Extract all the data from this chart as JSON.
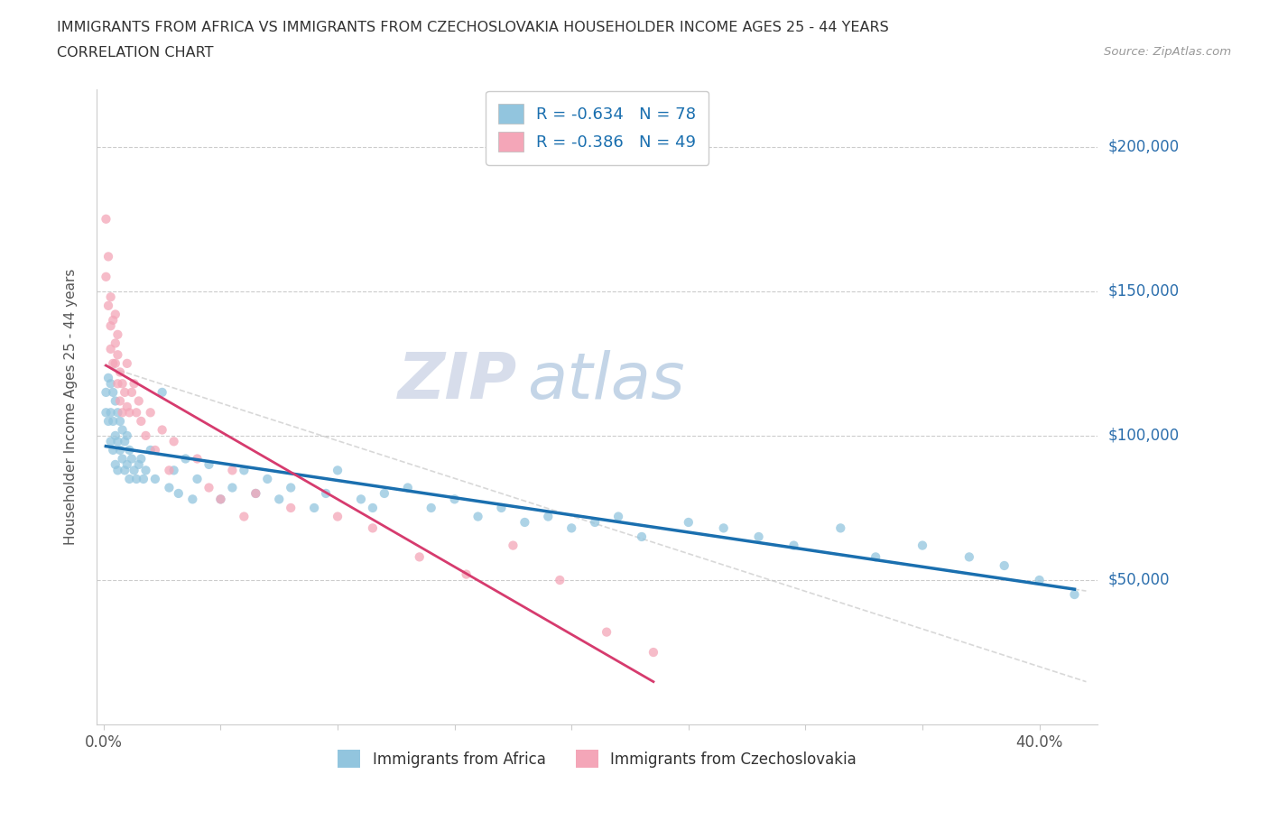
{
  "title_line1": "IMMIGRANTS FROM AFRICA VS IMMIGRANTS FROM CZECHOSLOVAKIA HOUSEHOLDER INCOME AGES 25 - 44 YEARS",
  "title_line2": "CORRELATION CHART",
  "source_text": "Source: ZipAtlas.com",
  "ylabel": "Householder Income Ages 25 - 44 years",
  "africa_color": "#92c5de",
  "czech_color": "#f4a6b8",
  "africa_line_color": "#1a6faf",
  "czech_line_color": "#d63b6e",
  "xlim": [
    -0.003,
    0.425
  ],
  "ylim": [
    0,
    220000
  ],
  "ytick_values": [
    50000,
    100000,
    150000,
    200000
  ],
  "xtick_values": [
    0.0,
    0.05,
    0.1,
    0.15,
    0.2,
    0.25,
    0.3,
    0.35,
    0.4
  ],
  "africa_x": [
    0.001,
    0.001,
    0.002,
    0.002,
    0.003,
    0.003,
    0.003,
    0.004,
    0.004,
    0.004,
    0.005,
    0.005,
    0.005,
    0.006,
    0.006,
    0.006,
    0.007,
    0.007,
    0.008,
    0.008,
    0.009,
    0.009,
    0.01,
    0.01,
    0.011,
    0.011,
    0.012,
    0.013,
    0.014,
    0.015,
    0.016,
    0.017,
    0.018,
    0.02,
    0.022,
    0.025,
    0.028,
    0.03,
    0.032,
    0.035,
    0.038,
    0.04,
    0.045,
    0.05,
    0.055,
    0.06,
    0.065,
    0.07,
    0.075,
    0.08,
    0.09,
    0.095,
    0.1,
    0.11,
    0.115,
    0.12,
    0.13,
    0.14,
    0.15,
    0.16,
    0.17,
    0.18,
    0.19,
    0.2,
    0.21,
    0.22,
    0.23,
    0.25,
    0.265,
    0.28,
    0.295,
    0.315,
    0.33,
    0.35,
    0.37,
    0.385,
    0.4,
    0.415
  ],
  "africa_y": [
    115000,
    108000,
    120000,
    105000,
    118000,
    108000,
    98000,
    115000,
    105000,
    95000,
    112000,
    100000,
    90000,
    108000,
    98000,
    88000,
    105000,
    95000,
    102000,
    92000,
    98000,
    88000,
    100000,
    90000,
    95000,
    85000,
    92000,
    88000,
    85000,
    90000,
    92000,
    85000,
    88000,
    95000,
    85000,
    115000,
    82000,
    88000,
    80000,
    92000,
    78000,
    85000,
    90000,
    78000,
    82000,
    88000,
    80000,
    85000,
    78000,
    82000,
    75000,
    80000,
    88000,
    78000,
    75000,
    80000,
    82000,
    75000,
    78000,
    72000,
    75000,
    70000,
    72000,
    68000,
    70000,
    72000,
    65000,
    70000,
    68000,
    65000,
    62000,
    68000,
    58000,
    62000,
    58000,
    55000,
    50000,
    45000
  ],
  "czech_x": [
    0.001,
    0.001,
    0.002,
    0.002,
    0.003,
    0.003,
    0.003,
    0.004,
    0.004,
    0.005,
    0.005,
    0.005,
    0.006,
    0.006,
    0.006,
    0.007,
    0.007,
    0.008,
    0.008,
    0.009,
    0.01,
    0.01,
    0.011,
    0.012,
    0.013,
    0.014,
    0.015,
    0.016,
    0.018,
    0.02,
    0.022,
    0.025,
    0.028,
    0.03,
    0.04,
    0.045,
    0.05,
    0.055,
    0.06,
    0.065,
    0.08,
    0.1,
    0.115,
    0.135,
    0.155,
    0.175,
    0.195,
    0.215,
    0.235
  ],
  "czech_y": [
    175000,
    155000,
    145000,
    162000,
    138000,
    130000,
    148000,
    125000,
    140000,
    132000,
    125000,
    142000,
    128000,
    118000,
    135000,
    122000,
    112000,
    118000,
    108000,
    115000,
    110000,
    125000,
    108000,
    115000,
    118000,
    108000,
    112000,
    105000,
    100000,
    108000,
    95000,
    102000,
    88000,
    98000,
    92000,
    82000,
    78000,
    88000,
    72000,
    80000,
    75000,
    72000,
    68000,
    58000,
    52000,
    62000,
    50000,
    32000,
    25000
  ]
}
